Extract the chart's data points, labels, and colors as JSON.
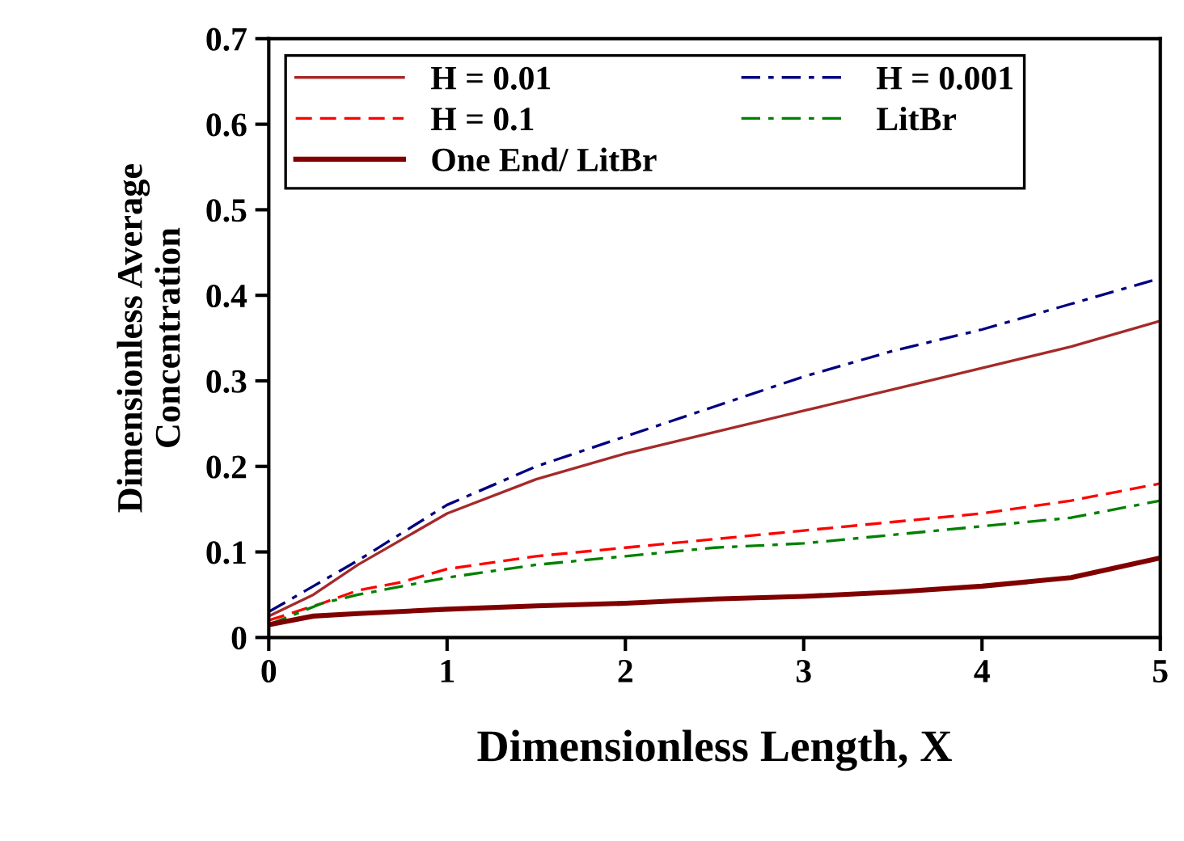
{
  "chart_data": {
    "type": "line",
    "xlabel": "Dimensionless Length, X",
    "ylabel": "Dimensionless Average\nConcentration",
    "xlim": [
      0,
      5
    ],
    "ylim": [
      0,
      0.7
    ],
    "xticks": [
      0,
      1,
      2,
      3,
      4,
      5
    ],
    "yticks": [
      0,
      0.1,
      0.2,
      0.3,
      0.4,
      0.5,
      0.6,
      0.7
    ],
    "grid": false,
    "legend": "top left",
    "marker": "none",
    "series": [
      {
        "name": "H = 0.01",
        "color": "#a52a2a",
        "line_style": "solid",
        "x": [
          0,
          0.25,
          0.5,
          1,
          1.5,
          2,
          2.5,
          3,
          3.5,
          4,
          4.5,
          5
        ],
        "values": [
          0.025,
          0.05,
          0.085,
          0.145,
          0.185,
          0.215,
          0.24,
          0.265,
          0.29,
          0.315,
          0.34,
          0.37
        ]
      },
      {
        "name": "H = 0.001",
        "color": "#000080",
        "line_style": "dashdot",
        "x": [
          0,
          0.25,
          0.5,
          1,
          1.5,
          2,
          2.5,
          3,
          3.5,
          4,
          4.5,
          5
        ],
        "values": [
          0.03,
          0.06,
          0.09,
          0.155,
          0.2,
          0.235,
          0.27,
          0.305,
          0.335,
          0.36,
          0.39,
          0.42
        ]
      },
      {
        "name": "H = 0.1",
        "color": "#ff0000",
        "line_style": "dashed",
        "x": [
          0,
          0.3,
          0.5,
          0.75,
          1,
          1.5,
          2,
          2.5,
          3,
          3.5,
          4,
          4.5,
          5
        ],
        "values": [
          0.02,
          0.04,
          0.055,
          0.065,
          0.08,
          0.095,
          0.105,
          0.115,
          0.125,
          0.135,
          0.145,
          0.16,
          0.18
        ]
      },
      {
        "name": "LitBr",
        "color": "#008000",
        "line_style": "dashdot",
        "x": [
          0,
          0.3,
          0.5,
          0.75,
          1,
          1.5,
          2,
          2.5,
          3,
          3.5,
          4,
          4.5,
          5
        ],
        "values": [
          0.015,
          0.04,
          0.05,
          0.06,
          0.07,
          0.085,
          0.095,
          0.105,
          0.11,
          0.12,
          0.13,
          0.14,
          0.16
        ]
      },
      {
        "name": "One End/ LitBr",
        "color": "#800000",
        "line_style": "solid",
        "x": [
          0,
          0.25,
          0.5,
          1,
          1.5,
          2,
          2.5,
          3,
          3.5,
          4,
          4.5,
          5
        ],
        "values": [
          0.015,
          0.025,
          0.028,
          0.033,
          0.037,
          0.04,
          0.045,
          0.048,
          0.053,
          0.06,
          0.07,
          0.093
        ]
      }
    ]
  }
}
